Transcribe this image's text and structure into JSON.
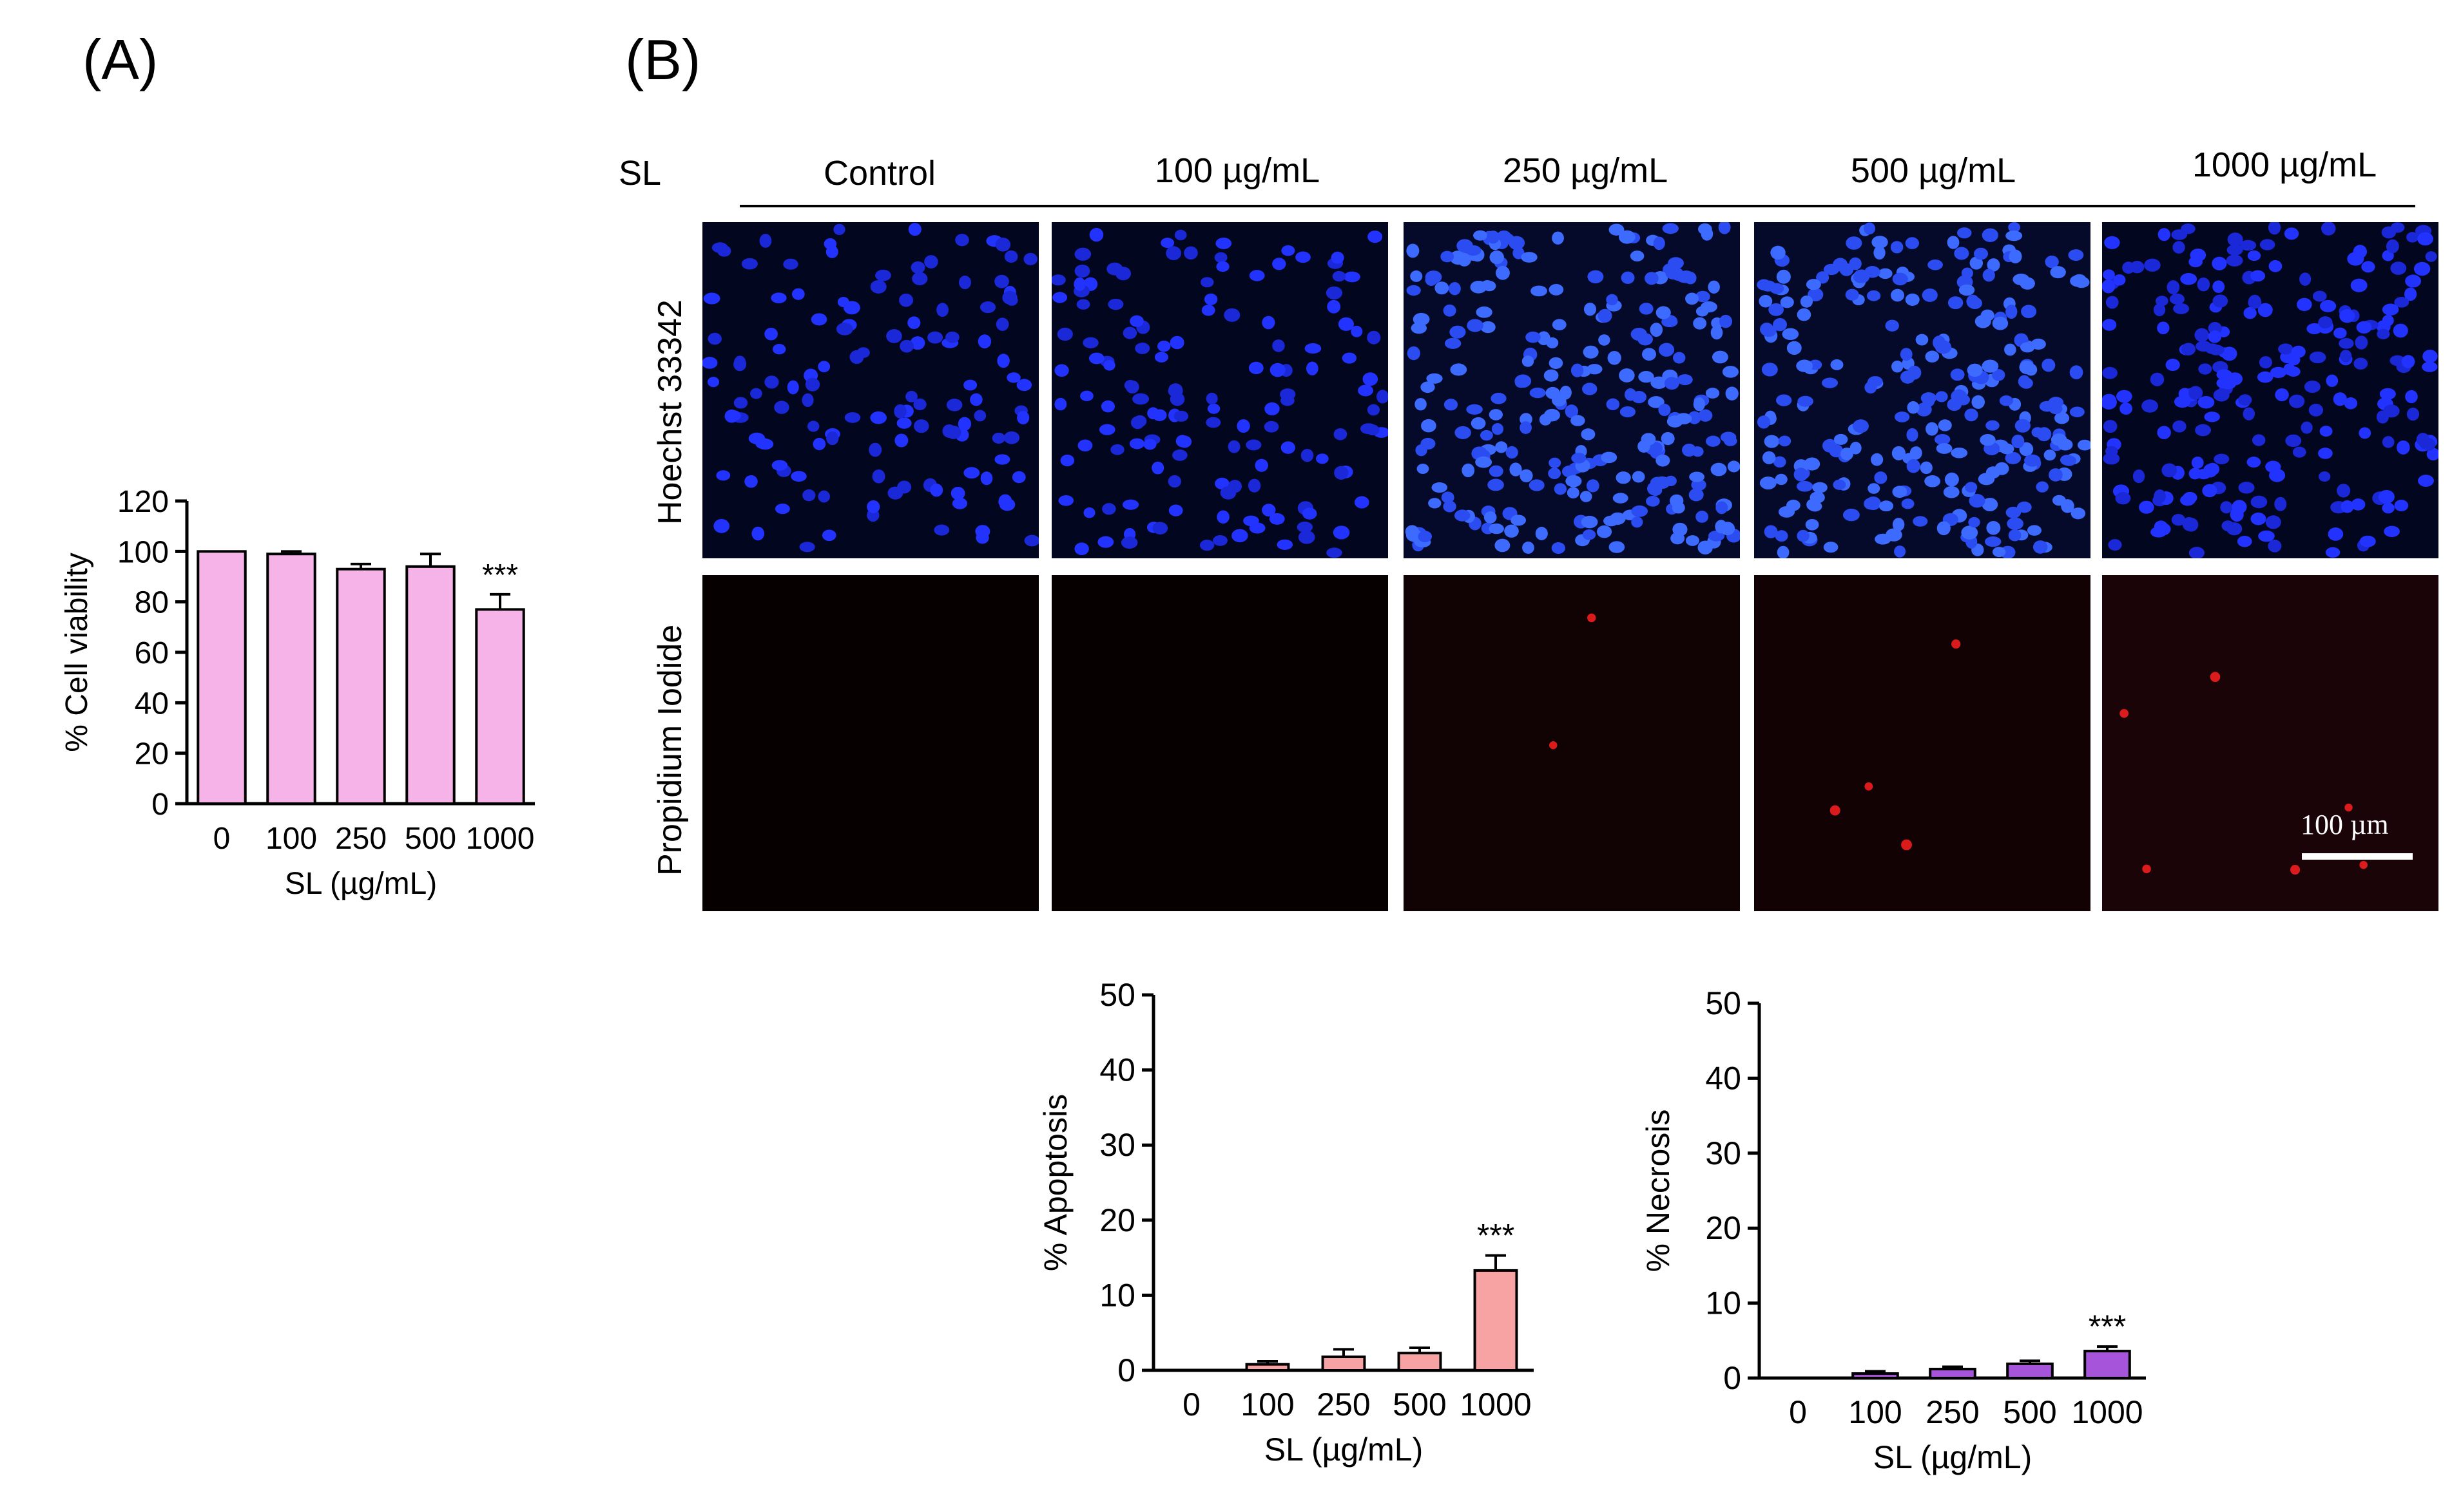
{
  "panels": {
    "a": "(A)",
    "b": "(B)"
  },
  "microscopy": {
    "row_header": "SL",
    "columns": [
      "Control",
      "100 µg/mL",
      "250 µg/mL",
      "500 µg/mL",
      "1000 µg/mL"
    ],
    "rows": [
      "Hoechst 33342",
      "Propidium Iodide"
    ],
    "scale_bar": "100 µm"
  },
  "colors": {
    "viability": "#f5b3e8",
    "apoptosis": "#f8a3a3",
    "necrosis": "#a654d9",
    "hoechst": "#1f2ff5",
    "pi": "#d0151a"
  },
  "chart_data": [
    {
      "id": "viability",
      "type": "bar",
      "title": "",
      "xlabel": "SL (µg/mL)",
      "ylabel": "% Cell viability",
      "categories": [
        "0",
        "100",
        "250",
        "500",
        "1000"
      ],
      "values": [
        100,
        99,
        93,
        94,
        77
      ],
      "errors": [
        0,
        1,
        2,
        5,
        6
      ],
      "annotations": [
        "",
        "",
        "",
        "",
        "***"
      ],
      "ylim": [
        0,
        120
      ],
      "yticks": [
        "0",
        "20",
        "40",
        "60",
        "80",
        "100",
        "120"
      ]
    },
    {
      "id": "apoptosis",
      "type": "bar",
      "title": "",
      "xlabel": "SL (µg/mL)",
      "ylabel": "% Apoptosis",
      "categories": [
        "0",
        "100",
        "250",
        "500",
        "1000"
      ],
      "values": [
        0,
        0.8,
        1.8,
        2.3,
        13.3
      ],
      "errors": [
        0,
        0.4,
        1,
        0.7,
        2
      ],
      "annotations": [
        "",
        "",
        "",
        "",
        "***"
      ],
      "ylim": [
        0,
        50
      ],
      "yticks": [
        "0",
        "10",
        "20",
        "30",
        "40",
        "50"
      ]
    },
    {
      "id": "necrosis",
      "type": "bar",
      "title": "",
      "xlabel": "SL (µg/mL)",
      "ylabel": "% Necrosis",
      "categories": [
        "0",
        "100",
        "250",
        "500",
        "1000"
      ],
      "values": [
        0,
        0.6,
        1.2,
        1.9,
        3.6
      ],
      "errors": [
        0,
        0.3,
        0.3,
        0.4,
        0.6
      ],
      "annotations": [
        "",
        "",
        "",
        "",
        "***"
      ],
      "ylim": [
        0,
        50
      ],
      "yticks": [
        "0",
        "10",
        "20",
        "30",
        "40",
        "50"
      ]
    }
  ]
}
